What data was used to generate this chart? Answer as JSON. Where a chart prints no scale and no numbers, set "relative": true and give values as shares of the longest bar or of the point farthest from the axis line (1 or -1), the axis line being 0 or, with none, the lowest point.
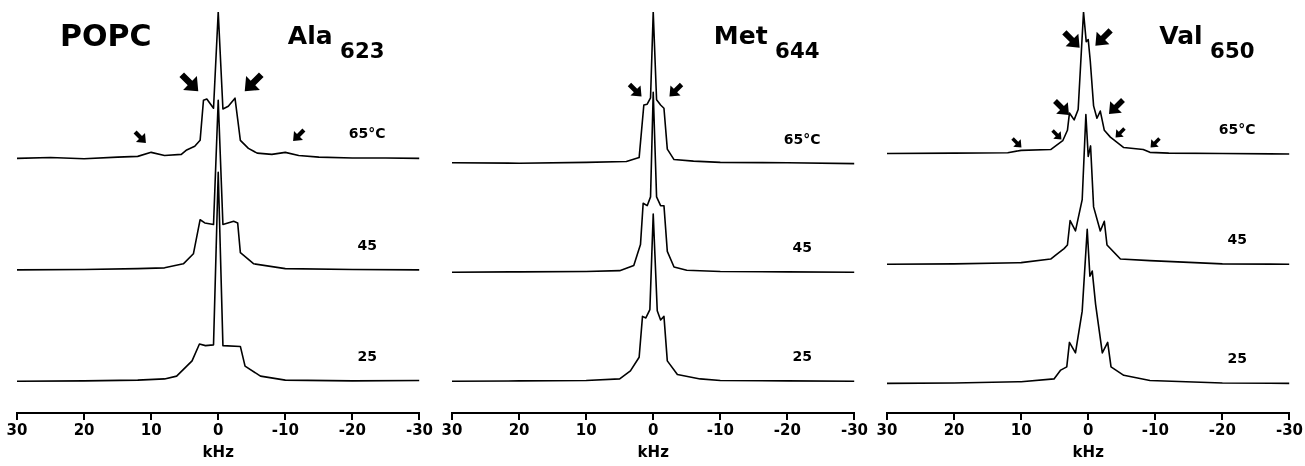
{
  "chart_data": [
    {
      "type": "line",
      "title": "Ala$_{623}$",
      "xlabel": "kHz",
      "xlim": [
        30,
        -30
      ],
      "xticks": [
        30,
        20,
        10,
        0,
        -10,
        -20,
        -30
      ],
      "relative": true,
      "grid": false,
      "legend": false,
      "annotations": [
        "POPC"
      ],
      "series": [
        {
          "name": "65°C",
          "color": "#000000",
          "x": [
            30,
            25,
            20,
            15,
            12,
            10,
            8,
            5.5,
            4.7,
            3.5,
            2.7,
            2.2,
            1.7,
            0.7,
            0,
            -0.7,
            -1.5,
            -2.5,
            -2.9,
            -3.3,
            -4.5,
            -5.8,
            -8,
            -10,
            -12,
            -15,
            -20,
            -25,
            -30
          ],
          "values": [
            0.635,
            0.637,
            0.634,
            0.638,
            0.64,
            0.65,
            0.642,
            0.645,
            0.656,
            0.665,
            0.68,
            0.78,
            0.783,
            0.76,
            1.0,
            0.758,
            0.765,
            0.785,
            0.733,
            0.68,
            0.66,
            0.648,
            0.645,
            0.65,
            0.642,
            0.638,
            0.636,
            0.636,
            0.635
          ]
        },
        {
          "name": "45",
          "color": "#000000",
          "x": [
            30,
            20,
            12,
            8,
            5.2,
            3.7,
            2.7,
            2.0,
            0.7,
            0,
            -0.7,
            -2.3,
            -2.9,
            -3.3,
            -5.3,
            -10,
            -20,
            -30
          ],
          "values": [
            0.357,
            0.358,
            0.36,
            0.362,
            0.372,
            0.397,
            0.482,
            0.474,
            0.47,
            0.78,
            0.47,
            0.478,
            0.474,
            0.4,
            0.372,
            0.36,
            0.358,
            0.357
          ]
        },
        {
          "name": "25",
          "color": "#000000",
          "x": [
            30,
            20,
            12,
            8,
            6.2,
            3.9,
            2.8,
            1.9,
            0.7,
            0,
            -0.7,
            -3.3,
            -4,
            -6.3,
            -10,
            -20,
            -30
          ],
          "values": [
            0.079,
            0.08,
            0.082,
            0.085,
            0.092,
            0.13,
            0.172,
            0.168,
            0.17,
            0.6,
            0.168,
            0.166,
            0.117,
            0.092,
            0.082,
            0.08,
            0.081
          ]
        }
      ]
    },
    {
      "type": "line",
      "title": "Met$_{644}$",
      "xlabel": "kHz",
      "xlim": [
        30,
        -30
      ],
      "xticks": [
        30,
        20,
        10,
        0,
        -10,
        -20,
        -30
      ],
      "relative": true,
      "grid": false,
      "legend": false,
      "series": [
        {
          "name": "65°C",
          "color": "#000000",
          "x": [
            30,
            20,
            10,
            4,
            2.1,
            1.4,
            0.9,
            0.4,
            0,
            -0.5,
            -1.1,
            -1.6,
            -2.1,
            -3.1,
            -6,
            -10,
            -20,
            -30
          ],
          "values": [
            0.624,
            0.623,
            0.625,
            0.627,
            0.637,
            0.768,
            0.77,
            0.786,
            1.0,
            0.781,
            0.768,
            0.76,
            0.658,
            0.632,
            0.628,
            0.625,
            0.624,
            0.622
          ]
        },
        {
          "name": "45",
          "color": "#000000",
          "x": [
            30,
            20,
            10,
            5,
            2.9,
            1.9,
            1.5,
            0.9,
            0.4,
            0,
            -0.5,
            -1.1,
            -1.6,
            -2.1,
            -3.1,
            -5,
            -10,
            -20,
            -30
          ],
          "values": [
            0.351,
            0.352,
            0.353,
            0.355,
            0.368,
            0.42,
            0.523,
            0.517,
            0.539,
            0.8,
            0.539,
            0.517,
            0.517,
            0.403,
            0.364,
            0.356,
            0.353,
            0.352,
            0.351
          ]
        },
        {
          "name": "25",
          "color": "#000000",
          "x": [
            30,
            20,
            10,
            5,
            3.4,
            2.1,
            1.6,
            1.1,
            0.5,
            0,
            -0.6,
            -1.1,
            -1.6,
            -2.1,
            -3.6,
            -7,
            -10,
            -20,
            -30
          ],
          "values": [
            0.079,
            0.08,
            0.081,
            0.085,
            0.105,
            0.139,
            0.241,
            0.237,
            0.258,
            0.496,
            0.255,
            0.232,
            0.241,
            0.13,
            0.096,
            0.085,
            0.081,
            0.08,
            0.079
          ]
        }
      ]
    },
    {
      "type": "line",
      "title": "Val$_{650}$",
      "xlabel": "kHz",
      "xlim": [
        30,
        -30
      ],
      "xticks": [
        30,
        20,
        10,
        0,
        -10,
        -20,
        -30
      ],
      "relative": true,
      "grid": false,
      "legend": false,
      "series": [
        {
          "name": "65°C",
          "color": "#000000",
          "x": [
            30,
            20,
            12,
            10,
            5.6,
            3.8,
            3.1,
            2.8,
            2.1,
            1.5,
            0.7,
            0.3,
            0,
            -0.3,
            -0.8,
            -1.3,
            -1.8,
            -2.4,
            -3.3,
            -5.3,
            -8.2,
            -9.2,
            -12,
            -20,
            -30
          ],
          "values": [
            0.647,
            0.648,
            0.649,
            0.655,
            0.657,
            0.679,
            0.705,
            0.748,
            0.731,
            0.757,
            1.0,
            0.926,
            0.931,
            0.879,
            0.766,
            0.735,
            0.753,
            0.705,
            0.688,
            0.662,
            0.657,
            0.65,
            0.648,
            0.647,
            0.646
          ]
        },
        {
          "name": "45",
          "color": "#000000",
          "x": [
            30,
            20,
            10,
            5.6,
            3.6,
            3.1,
            2.7,
            1.9,
            0.9,
            0.35,
            0,
            -0.35,
            -0.8,
            -1.8,
            -2.4,
            -2.8,
            -4.8,
            -9.2,
            -20,
            -30
          ],
          "values": [
            0.371,
            0.372,
            0.375,
            0.384,
            0.41,
            0.419,
            0.48,
            0.454,
            0.532,
            0.744,
            0.64,
            0.666,
            0.514,
            0.454,
            0.478,
            0.419,
            0.384,
            0.38,
            0.372,
            0.371
          ]
        },
        {
          "name": "25",
          "color": "#000000",
          "x": [
            30,
            20,
            10,
            5.1,
            4.1,
            3.2,
            2.8,
            1.9,
            0.9,
            0.15,
            -0.25,
            -0.6,
            -1.1,
            -2.1,
            -2.9,
            -3.4,
            -5.3,
            -9.2,
            -20,
            -30
          ],
          "values": [
            0.074,
            0.075,
            0.078,
            0.085,
            0.107,
            0.115,
            0.176,
            0.15,
            0.254,
            0.458,
            0.341,
            0.354,
            0.271,
            0.15,
            0.176,
            0.115,
            0.094,
            0.081,
            0.075,
            0.074
          ]
        }
      ]
    }
  ]
}
